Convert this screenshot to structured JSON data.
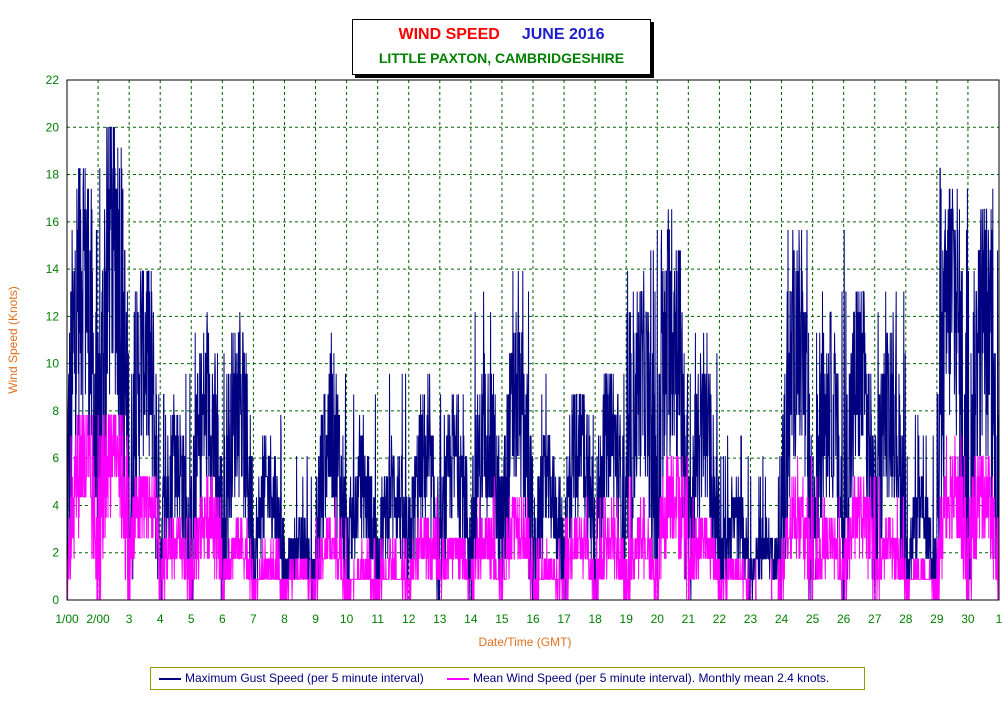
{
  "header": {
    "title_main": "WIND SPEED",
    "title_month": "JUNE 2016",
    "subtitle": "LITTLE PAXTON, CAMBRIDGESHIRE"
  },
  "chart_data": {
    "type": "line",
    "title": "WIND SPEED JUNE 2016",
    "subtitle": "LITTLE PAXTON, CAMBRIDGESHIRE",
    "xlabel": "Date/Time (GMT)",
    "ylabel": "Wind Speed (Knots)",
    "ylim": [
      0,
      22
    ],
    "yticks": [
      "0",
      "2",
      "4",
      "6",
      "8",
      "10",
      "12",
      "14",
      "16",
      "18",
      "20",
      "22"
    ],
    "xticks": [
      "1/00",
      "2/00",
      "3",
      "4",
      "5",
      "6",
      "7",
      "8",
      "9",
      "10",
      "11",
      "12",
      "13",
      "14",
      "15",
      "16",
      "17",
      "18",
      "19",
      "20",
      "21",
      "22",
      "23",
      "24",
      "25",
      "26",
      "27",
      "28",
      "29",
      "30",
      "1"
    ],
    "grid": true,
    "legend_position": "bottom",
    "series": [
      {
        "name": "Maximum Gust Speed (per 5 minute interval)",
        "color": "#000080",
        "daily_peak": [
          18,
          20,
          14,
          10,
          12,
          12,
          8,
          6,
          12,
          10,
          10,
          10,
          10,
          13,
          15,
          11,
          9,
          10,
          15,
          18,
          12,
          7,
          6,
          17,
          14,
          16,
          13,
          8,
          19,
          18
        ],
        "daily_typical": [
          12,
          13,
          9,
          5,
          7,
          7,
          4,
          2,
          6,
          4,
          4,
          5,
          5,
          6,
          7,
          4,
          6,
          6,
          8,
          10,
          6,
          3,
          2,
          9,
          7,
          8,
          7,
          3,
          11,
          10
        ]
      },
      {
        "name": "Mean Wind Speed (per 5 minute interval). Monthly mean 2.4 knots.",
        "color": "#ff00ff",
        "daily_peak": [
          8,
          8,
          5,
          4,
          5,
          4,
          3,
          2,
          4,
          3,
          3,
          4,
          3,
          5,
          5,
          3,
          4,
          5,
          5,
          6,
          4,
          2,
          2,
          6,
          5,
          5,
          5,
          2,
          7,
          6
        ],
        "daily_typical": [
          5,
          6,
          4,
          2,
          3,
          2,
          1,
          1,
          2,
          1,
          1,
          2,
          2,
          2,
          3,
          1,
          2,
          2,
          2,
          4,
          2,
          1,
          0,
          3,
          2,
          3,
          2,
          1,
          4,
          4
        ]
      }
    ]
  }
}
